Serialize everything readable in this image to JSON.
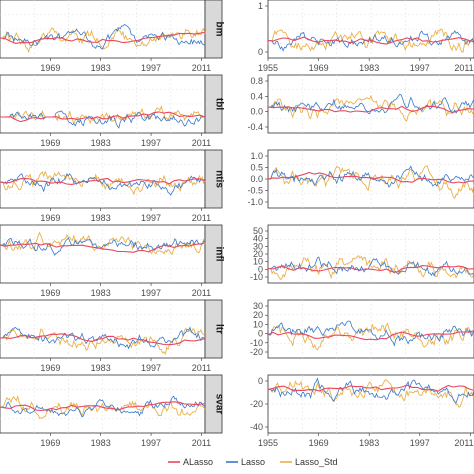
{
  "chart_data": {
    "type": "line",
    "colors": {
      "ALasso": "#e8485f",
      "Lasso": "#3a78c9",
      "Lasso_Std": "#eab04a"
    },
    "legend": {
      "position": "bottom",
      "entries": [
        "ALasso",
        "Lasso",
        "Lasso_Std"
      ]
    },
    "grid": true,
    "left_column": {
      "x_ticks": [
        "1969",
        "1983",
        "1997",
        "2011"
      ],
      "x_range": [
        1955,
        2012
      ],
      "panels": [
        {
          "strip": "bm",
          "show_x_ticks": true
        },
        {
          "strip": "tbl",
          "show_x_ticks": true
        },
        {
          "strip": "ntis",
          "show_x_ticks": true
        },
        {
          "strip": "infl",
          "show_x_ticks": true
        },
        {
          "strip": "ltr",
          "show_x_ticks": true
        },
        {
          "strip": "svar",
          "show_x_ticks": true
        }
      ]
    },
    "right_column": {
      "x_ticks": [
        "1955",
        "1969",
        "1983",
        "1997",
        "2011"
      ],
      "x_range": [
        1955,
        2012
      ],
      "panels": [
        {
          "y_ticks": [
            "1",
            "0"
          ],
          "show_x_ticks": true
        },
        {
          "y_ticks": [
            "0.8",
            "0.4",
            "0.0",
            "-0.4"
          ],
          "show_x_ticks": false
        },
        {
          "y_ticks": [
            "1.0",
            "0.5",
            "0.0",
            "-0.5",
            "-1.0"
          ],
          "show_x_ticks": false
        },
        {
          "y_ticks": [
            "50",
            "40",
            "30",
            "20",
            "10",
            "0",
            "-10"
          ],
          "show_x_ticks": false
        },
        {
          "y_ticks": [
            "30",
            "20",
            "10",
            "0",
            "-10",
            "-20"
          ],
          "show_x_ticks": false
        },
        {
          "y_ticks": [
            "0",
            "-20",
            "-40"
          ],
          "show_x_ticks": true
        }
      ]
    }
  }
}
